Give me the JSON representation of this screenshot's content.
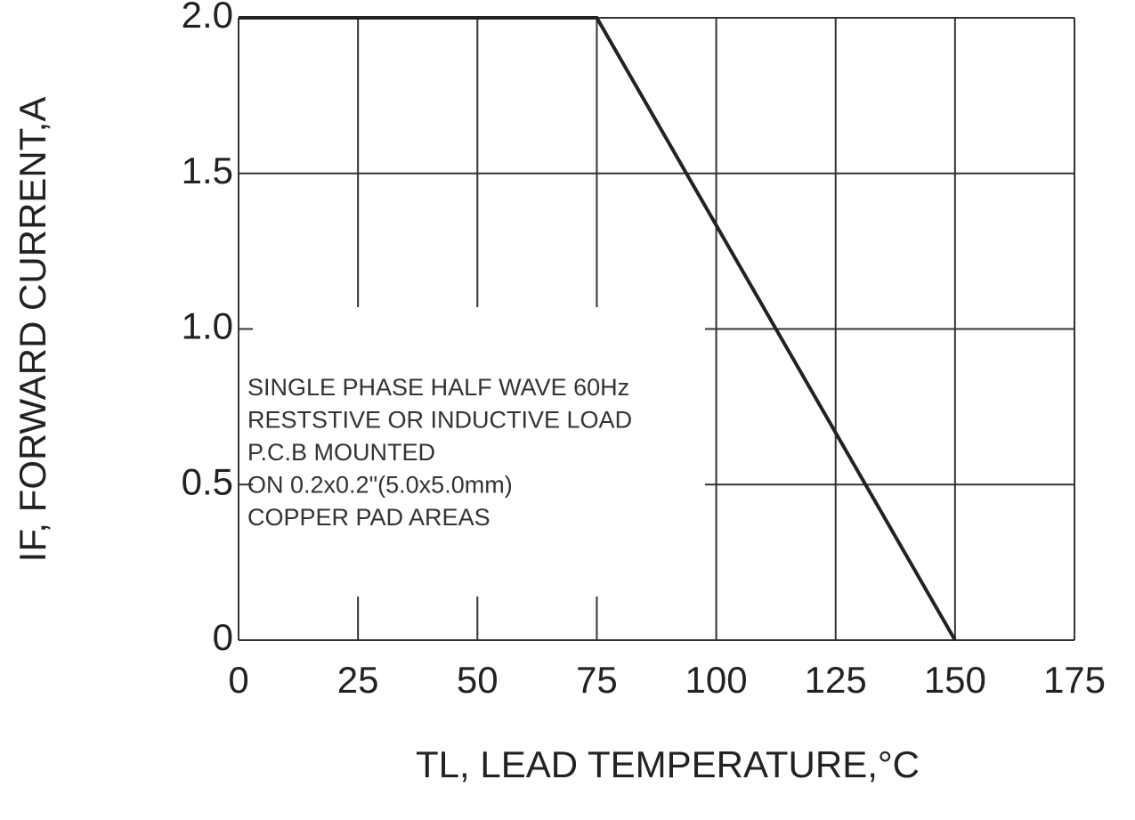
{
  "chart_data": {
    "type": "line",
    "x": [
      0,
      75,
      150
    ],
    "values": [
      2,
      2,
      0
    ],
    "color": "#222222",
    "xlim": [
      0,
      175
    ],
    "ylim": [
      0,
      2
    ],
    "xticks": [
      0,
      25,
      50,
      75,
      100,
      125,
      150,
      175
    ],
    "yticks": [
      0,
      0.5,
      {
        "value": 1,
        "label": "1.0"
      },
      1.5,
      {
        "value": 2,
        "label": "2.0"
      }
    ],
    "grid": true,
    "xlabel": "TL, LEAD TEMPERATURE,°C",
    "ylabel": "IF, FORWARD CURRENT,A",
    "annotations": [
      "SINGLE PHASE HALF WAVE 60Hz",
      "RESTSTIVE OR INDUCTIVE LOAD",
      "P.C.B MOUNTED",
      "ON 0.2x0.2\"(5.0x5.0mm)",
      "COPPER PAD AREAS"
    ]
  }
}
